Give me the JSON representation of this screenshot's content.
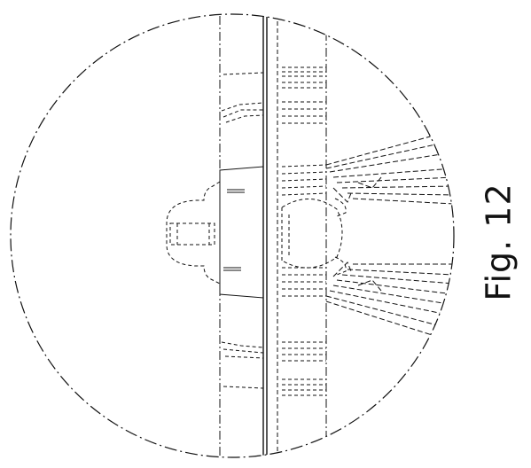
{
  "figure": {
    "label": "Fig. 12"
  },
  "colors": {
    "line": "#111111",
    "background": "#ffffff"
  }
}
